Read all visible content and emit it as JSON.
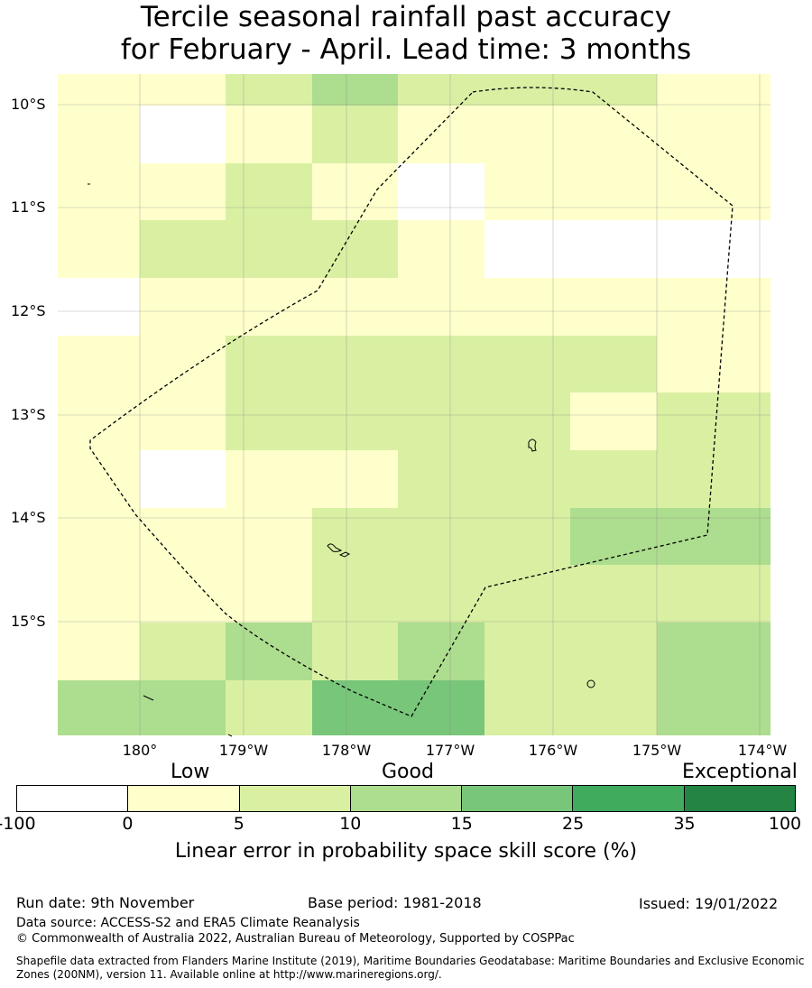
{
  "title_line1": "Tercile seasonal rainfall past accuracy",
  "title_line2": "for February - April. Lead time: 3 months",
  "lat_labels": [
    "10°S",
    "11°S",
    "12°S",
    "13°S",
    "14°S",
    "15°S"
  ],
  "lon_labels": [
    "180°",
    "179°W",
    "178°W",
    "177°W",
    "176°W",
    "175°W",
    "174°W"
  ],
  "grid_rows": [
    [
      1,
      1,
      2,
      3,
      2,
      2,
      2,
      1
    ],
    [
      1,
      0,
      1,
      2,
      1,
      1,
      1,
      1
    ],
    [
      1,
      1,
      2,
      1,
      0,
      1,
      1,
      1
    ],
    [
      1,
      2,
      2,
      2,
      1,
      0,
      0,
      0
    ],
    [
      0,
      1,
      1,
      1,
      1,
      1,
      1,
      1
    ],
    [
      1,
      1,
      2,
      2,
      2,
      2,
      2,
      1
    ],
    [
      1,
      1,
      2,
      2,
      2,
      2,
      1,
      2
    ],
    [
      1,
      0,
      1,
      1,
      2,
      2,
      2,
      2
    ],
    [
      1,
      1,
      1,
      2,
      2,
      2,
      3,
      3
    ],
    [
      1,
      1,
      1,
      2,
      2,
      2,
      2,
      2
    ],
    [
      1,
      2,
      3,
      2,
      3,
      2,
      2,
      3
    ],
    [
      3,
      3,
      2,
      4,
      4,
      2,
      2,
      3
    ]
  ],
  "colorbar": {
    "category_low": "Low",
    "category_good": "Good",
    "category_exceptional": "Exceptional",
    "colors": [
      "#ffffff",
      "#ffffcc",
      "#d9f0a3",
      "#addd8e",
      "#78c679",
      "#41ab5d",
      "#238443"
    ],
    "ticks": [
      "-100",
      "0",
      "5",
      "10",
      "15",
      "25",
      "35",
      "100"
    ],
    "label": "Linear error in probability space skill score (%)"
  },
  "footer": {
    "run_date": "Run date: 9th November",
    "base_period": "Base period: 1981-2018",
    "issued": "Issued: 19/01/2022",
    "data_source": "Data source: ACCESS-S2 and ERA5 Climate Reanalysis",
    "copyright": "© Commonwealth of Australia 2022, Australian Bureau of Meteorology, Supported by COSPPac",
    "shapefile_line1": "Shapefile data extracted from Flanders Marine Institute (2019), Maritime Boundaries Geodatabase: Maritime Boundaries and Exclusive Economic",
    "shapefile_line2": "Zones (200NM), version 11. Available online at http://www.marineregions.org/."
  }
}
